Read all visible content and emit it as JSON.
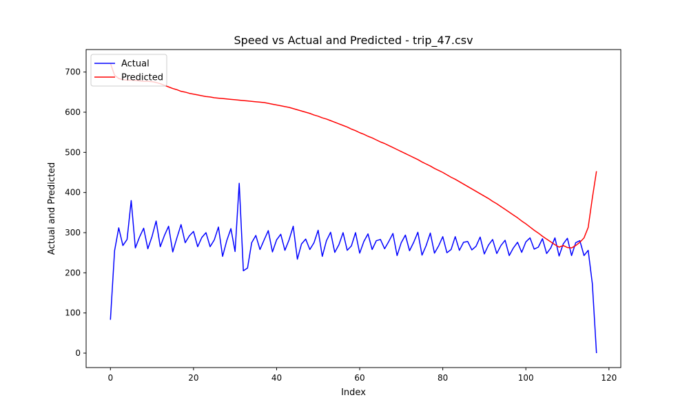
{
  "chart_data": {
    "type": "line",
    "title": "Speed vs Actual and Predicted - trip_47.csv",
    "xlabel": "Index",
    "ylabel": "Actual and Predicted",
    "xlim": [
      -5.85,
      122.85
    ],
    "ylim": [
      -36,
      756
    ],
    "xticks": [
      0,
      20,
      40,
      60,
      80,
      100,
      120
    ],
    "yticks": [
      0,
      100,
      200,
      300,
      400,
      500,
      600,
      700
    ],
    "grid": false,
    "legend_position": "top-left",
    "series": [
      {
        "name": "Actual",
        "color": "#0000ff",
        "x": [
          0,
          1,
          2,
          3,
          4,
          5,
          6,
          7,
          8,
          9,
          10,
          11,
          12,
          13,
          14,
          15,
          16,
          17,
          18,
          19,
          20,
          21,
          22,
          23,
          24,
          25,
          26,
          27,
          28,
          29,
          30,
          31,
          32,
          33,
          34,
          35,
          36,
          37,
          38,
          39,
          40,
          41,
          42,
          43,
          44,
          45,
          46,
          47,
          48,
          49,
          50,
          51,
          52,
          53,
          54,
          55,
          56,
          57,
          58,
          59,
          60,
          61,
          62,
          63,
          64,
          65,
          66,
          67,
          68,
          69,
          70,
          71,
          72,
          73,
          74,
          75,
          76,
          77,
          78,
          79,
          80,
          81,
          82,
          83,
          84,
          85,
          86,
          87,
          88,
          89,
          90,
          91,
          92,
          93,
          94,
          95,
          96,
          97,
          98,
          99,
          100,
          101,
          102,
          103,
          104,
          105,
          106,
          107,
          108,
          109,
          110,
          111,
          112,
          113,
          114,
          115,
          116,
          117
        ],
        "values": [
          83,
          255,
          312,
          268,
          283,
          380,
          262,
          289,
          311,
          260,
          290,
          329,
          265,
          293,
          316,
          252,
          287,
          320,
          275,
          292,
          303,
          265,
          288,
          300,
          265,
          282,
          314,
          241,
          280,
          310,
          253,
          423,
          205,
          212,
          275,
          293,
          258,
          282,
          305,
          252,
          282,
          296,
          256,
          282,
          316,
          234,
          272,
          284,
          258,
          275,
          306,
          241,
          280,
          301,
          251,
          270,
          300,
          256,
          267,
          300,
          249,
          278,
          297,
          258,
          280,
          283,
          260,
          278,
          298,
          243,
          275,
          294,
          255,
          276,
          301,
          244,
          268,
          299,
          249,
          267,
          290,
          250,
          258,
          290,
          256,
          276,
          278,
          257,
          266,
          289,
          247,
          269,
          283,
          248,
          268,
          281,
          243,
          262,
          276,
          251,
          277,
          287,
          259,
          264,
          285,
          248,
          262,
          287,
          242,
          272,
          286,
          243,
          275,
          280,
          243,
          256,
          173,
          0
        ]
      },
      {
        "name": "Predicted",
        "color": "#ff0000",
        "x": [
          0,
          1,
          2,
          3,
          4,
          5,
          6,
          7,
          8,
          9,
          10,
          11,
          12,
          13,
          14,
          15,
          16,
          17,
          18,
          19,
          20,
          21,
          22,
          23,
          24,
          25,
          26,
          27,
          28,
          29,
          30,
          31,
          32,
          33,
          34,
          35,
          36,
          37,
          38,
          39,
          40,
          41,
          42,
          43,
          44,
          45,
          46,
          47,
          48,
          49,
          50,
          51,
          52,
          53,
          54,
          55,
          56,
          57,
          58,
          59,
          60,
          61,
          62,
          63,
          64,
          65,
          66,
          67,
          68,
          69,
          70,
          71,
          72,
          73,
          74,
          75,
          76,
          77,
          78,
          79,
          80,
          81,
          82,
          83,
          84,
          85,
          86,
          87,
          88,
          89,
          90,
          91,
          92,
          93,
          94,
          95,
          96,
          97,
          98,
          99,
          100,
          101,
          102,
          103,
          104,
          105,
          106,
          107,
          108,
          109,
          110,
          111,
          112,
          113,
          114,
          115,
          116,
          117
        ],
        "values": [
          722,
          692,
          684,
          681,
          680,
          680,
          679,
          678,
          677,
          677,
          676,
          674,
          671,
          667,
          663,
          659,
          656,
          652,
          650,
          647,
          645,
          643,
          641,
          639,
          638,
          636,
          635,
          634,
          633,
          632,
          631,
          630,
          629,
          628,
          627,
          626,
          625,
          624,
          622,
          620,
          618,
          616,
          614,
          612,
          609,
          606,
          603,
          600,
          597,
          593,
          590,
          586,
          583,
          579,
          575,
          571,
          567,
          563,
          558,
          554,
          549,
          545,
          540,
          536,
          531,
          526,
          522,
          517,
          512,
          507,
          502,
          497,
          492,
          487,
          482,
          476,
          471,
          466,
          460,
          455,
          450,
          444,
          438,
          433,
          427,
          421,
          415,
          409,
          403,
          397,
          391,
          385,
          378,
          372,
          365,
          358,
          351,
          344,
          337,
          329,
          322,
          314,
          306,
          299,
          291,
          284,
          277,
          270,
          264,
          268,
          263,
          262,
          268,
          276,
          287,
          313,
          386,
          453
        ]
      }
    ]
  }
}
